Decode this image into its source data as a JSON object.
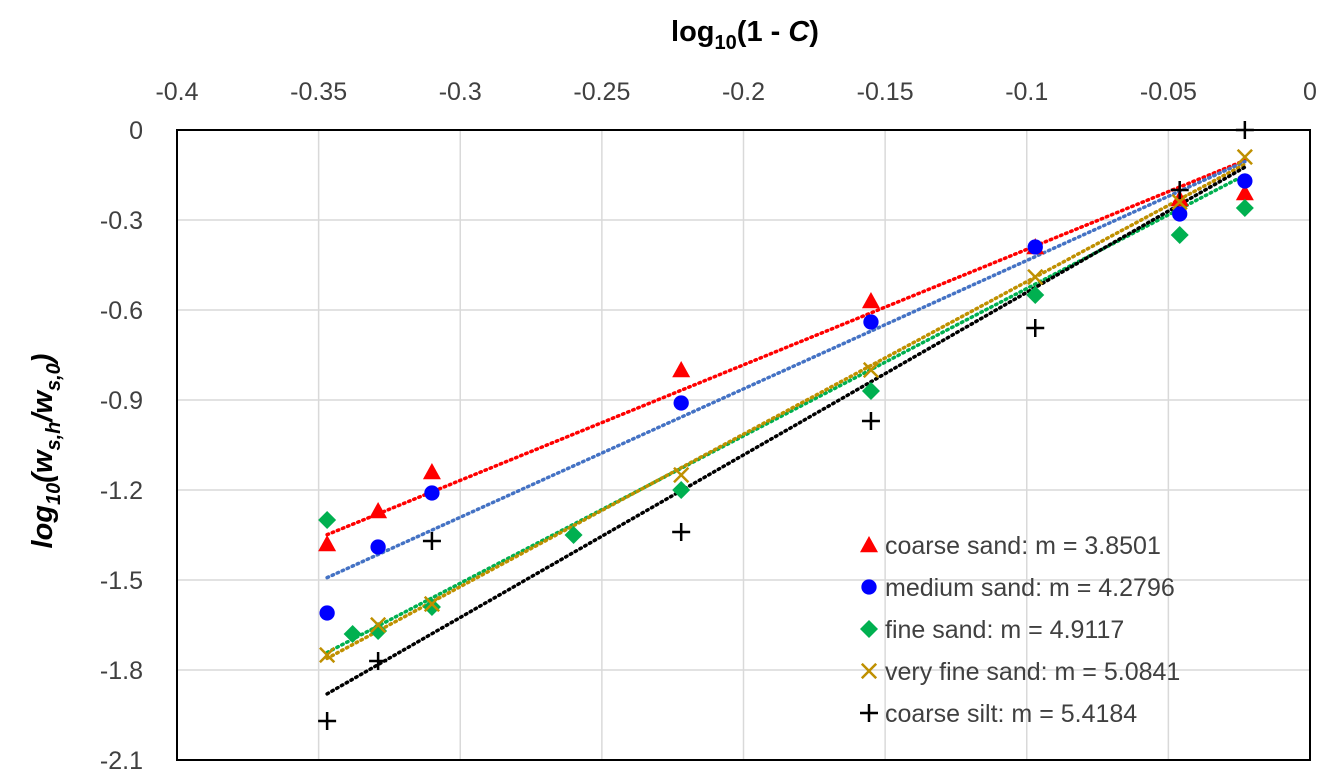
{
  "chart_data": {
    "type": "scatter",
    "xlabel": {
      "base": "log",
      "sub": "10",
      "open": "(1 - ",
      "italic": "C",
      "close": ")"
    },
    "ylabel": {
      "base": "log",
      "sub1": "10",
      "mid1": "(w",
      "sub2": "s,h",
      "mid2": "/w",
      "sub3": "s,0",
      "end": ")"
    },
    "xlim": [
      -0.4,
      0
    ],
    "ylim": [
      -2.1,
      0
    ],
    "x_axis_position": "top",
    "grid": true,
    "legend_position": "bottom-right",
    "x_ticks": [
      "-0.4",
      "-0.35",
      "-0.3",
      "-0.25",
      "-0.2",
      "-0.15",
      "-0.1",
      "-0.05",
      "0"
    ],
    "y_ticks": [
      "0",
      "-0.3",
      "-0.6",
      "-0.9",
      "-1.2",
      "-1.5",
      "-1.8",
      "-2.1"
    ],
    "series": [
      {
        "name": "coarse sand: m = 3.8501",
        "marker": "triangle",
        "color": "#ff0000",
        "trend_color": "#ff0000",
        "slope": 3.8501,
        "trend_x": [
          -0.347,
          -0.023
        ],
        "points": [
          [
            -0.347,
            -1.38
          ],
          [
            -0.329,
            -1.27
          ],
          [
            -0.31,
            -1.14
          ],
          [
            -0.222,
            -0.8
          ],
          [
            -0.155,
            -0.57
          ],
          [
            -0.097,
            -0.39
          ],
          [
            -0.046,
            -0.23
          ],
          [
            -0.023,
            -0.21
          ]
        ]
      },
      {
        "name": "medium sand: m = 4.2796",
        "marker": "circle",
        "color": "#0000ff",
        "trend_color": "#4472c4",
        "slope": 4.2796,
        "trend_x": [
          -0.347,
          -0.023
        ],
        "points": [
          [
            -0.347,
            -1.61
          ],
          [
            -0.329,
            -1.39
          ],
          [
            -0.31,
            -1.21
          ],
          [
            -0.222,
            -0.91
          ],
          [
            -0.155,
            -0.64
          ],
          [
            -0.097,
            -0.39
          ],
          [
            -0.046,
            -0.28
          ],
          [
            -0.023,
            -0.17
          ]
        ]
      },
      {
        "name": "fine sand: m = 4.9117",
        "marker": "diamond",
        "color": "#00b050",
        "trend_color": "#00b050",
        "slope": 4.9117,
        "trend_x": [
          -0.347,
          -0.023
        ],
        "points": [
          [
            -0.347,
            -1.3
          ],
          [
            -0.338,
            -1.68
          ],
          [
            -0.329,
            -1.67
          ],
          [
            -0.31,
            -1.59
          ],
          [
            -0.26,
            -1.35
          ],
          [
            -0.222,
            -1.2
          ],
          [
            -0.155,
            -0.87
          ],
          [
            -0.097,
            -0.55
          ],
          [
            -0.046,
            -0.35
          ],
          [
            -0.023,
            -0.26
          ]
        ]
      },
      {
        "name": "very fine sand: m = 5.0841",
        "marker": "x",
        "color": "#bf9000",
        "trend_color": "#bf9000",
        "slope": 5.0841,
        "trend_x": [
          -0.347,
          -0.023
        ],
        "points": [
          [
            -0.347,
            -1.75
          ],
          [
            -0.329,
            -1.65
          ],
          [
            -0.31,
            -1.58
          ],
          [
            -0.222,
            -1.15
          ],
          [
            -0.155,
            -0.8
          ],
          [
            -0.097,
            -0.49
          ],
          [
            -0.046,
            -0.24
          ],
          [
            -0.023,
            -0.09
          ]
        ]
      },
      {
        "name": "coarse silt: m = 5.4184",
        "marker": "plus",
        "color": "#000000",
        "trend_color": "#000000",
        "slope": 5.4184,
        "trend_x": [
          -0.347,
          -0.023
        ],
        "points": [
          [
            -0.347,
            -1.97
          ],
          [
            -0.329,
            -1.77
          ],
          [
            -0.31,
            -1.37
          ],
          [
            -0.222,
            -1.34
          ],
          [
            -0.155,
            -0.97
          ],
          [
            -0.097,
            -0.66
          ],
          [
            -0.046,
            -0.2
          ],
          [
            -0.023,
            0.0
          ]
        ]
      }
    ]
  }
}
